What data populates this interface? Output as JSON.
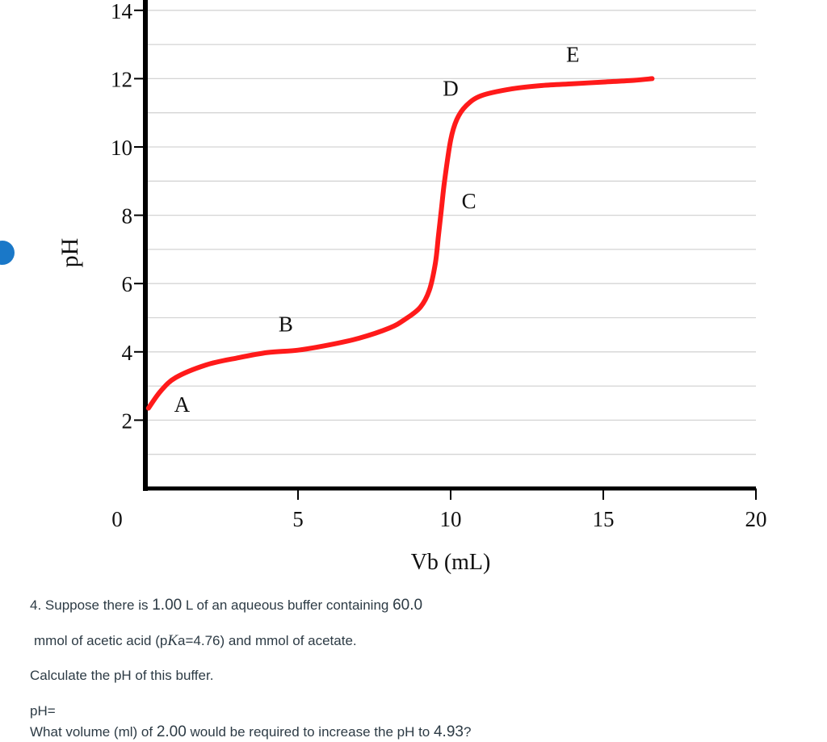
{
  "chart_data": {
    "type": "line",
    "xlabel": "Vb (mL)",
    "ylabel": "pH",
    "xlim": [
      0,
      20
    ],
    "ylim": [
      0,
      14
    ],
    "x_ticks": [
      "0",
      "5",
      "10",
      "15",
      "20"
    ],
    "y_ticks": [
      "2",
      "4",
      "6",
      "8",
      "10",
      "12",
      "14"
    ],
    "grid": true,
    "series": [
      {
        "color": "#ff1a1a",
        "x": [
          0.1,
          0.5,
          1.0,
          2.0,
          3.0,
          4.0,
          5.0,
          6.0,
          7.0,
          8.0,
          8.5,
          9.0,
          9.3,
          9.5,
          9.6,
          9.7,
          9.8,
          10.0,
          10.2,
          10.5,
          11.0,
          12.0,
          13.0,
          14.0,
          15.0,
          16.0,
          16.6
        ],
        "y": [
          2.35,
          2.85,
          3.25,
          3.62,
          3.82,
          3.98,
          4.05,
          4.2,
          4.4,
          4.7,
          4.95,
          5.3,
          5.8,
          6.6,
          7.4,
          8.2,
          9.0,
          10.2,
          10.8,
          11.2,
          11.5,
          11.7,
          11.8,
          11.85,
          11.9,
          11.95,
          12.0
        ]
      }
    ],
    "annotations": [
      {
        "text": "A",
        "x": 1.2,
        "y": 2.25
      },
      {
        "text": "B",
        "x": 4.6,
        "y": 4.6
      },
      {
        "text": "C",
        "x": 10.6,
        "y": 8.2
      },
      {
        "text": "D",
        "x": 10.0,
        "y": 11.5
      },
      {
        "text": "E",
        "x": 14.0,
        "y": 12.5
      }
    ]
  },
  "question": {
    "line1_pre": "4. Suppose there is ",
    "line1_volume": "1.00",
    "line1_mid": " L of an aqueous buffer containing ",
    "line1_mmol": "60.0",
    "line2_pre": "mmol of acetic acid (p",
    "line2_ka": "K",
    "line2_a": "a=4.76) and  mmol of acetate.",
    "line3": "Calculate the pH of this buffer.",
    "line4": "pH=",
    "line5_pre": "What volume (ml) of ",
    "line5_conc": "2.00",
    "line5_mid": " would be required to increase the pH to ",
    "line5_ph": "4.93",
    "line5_end": "?"
  }
}
